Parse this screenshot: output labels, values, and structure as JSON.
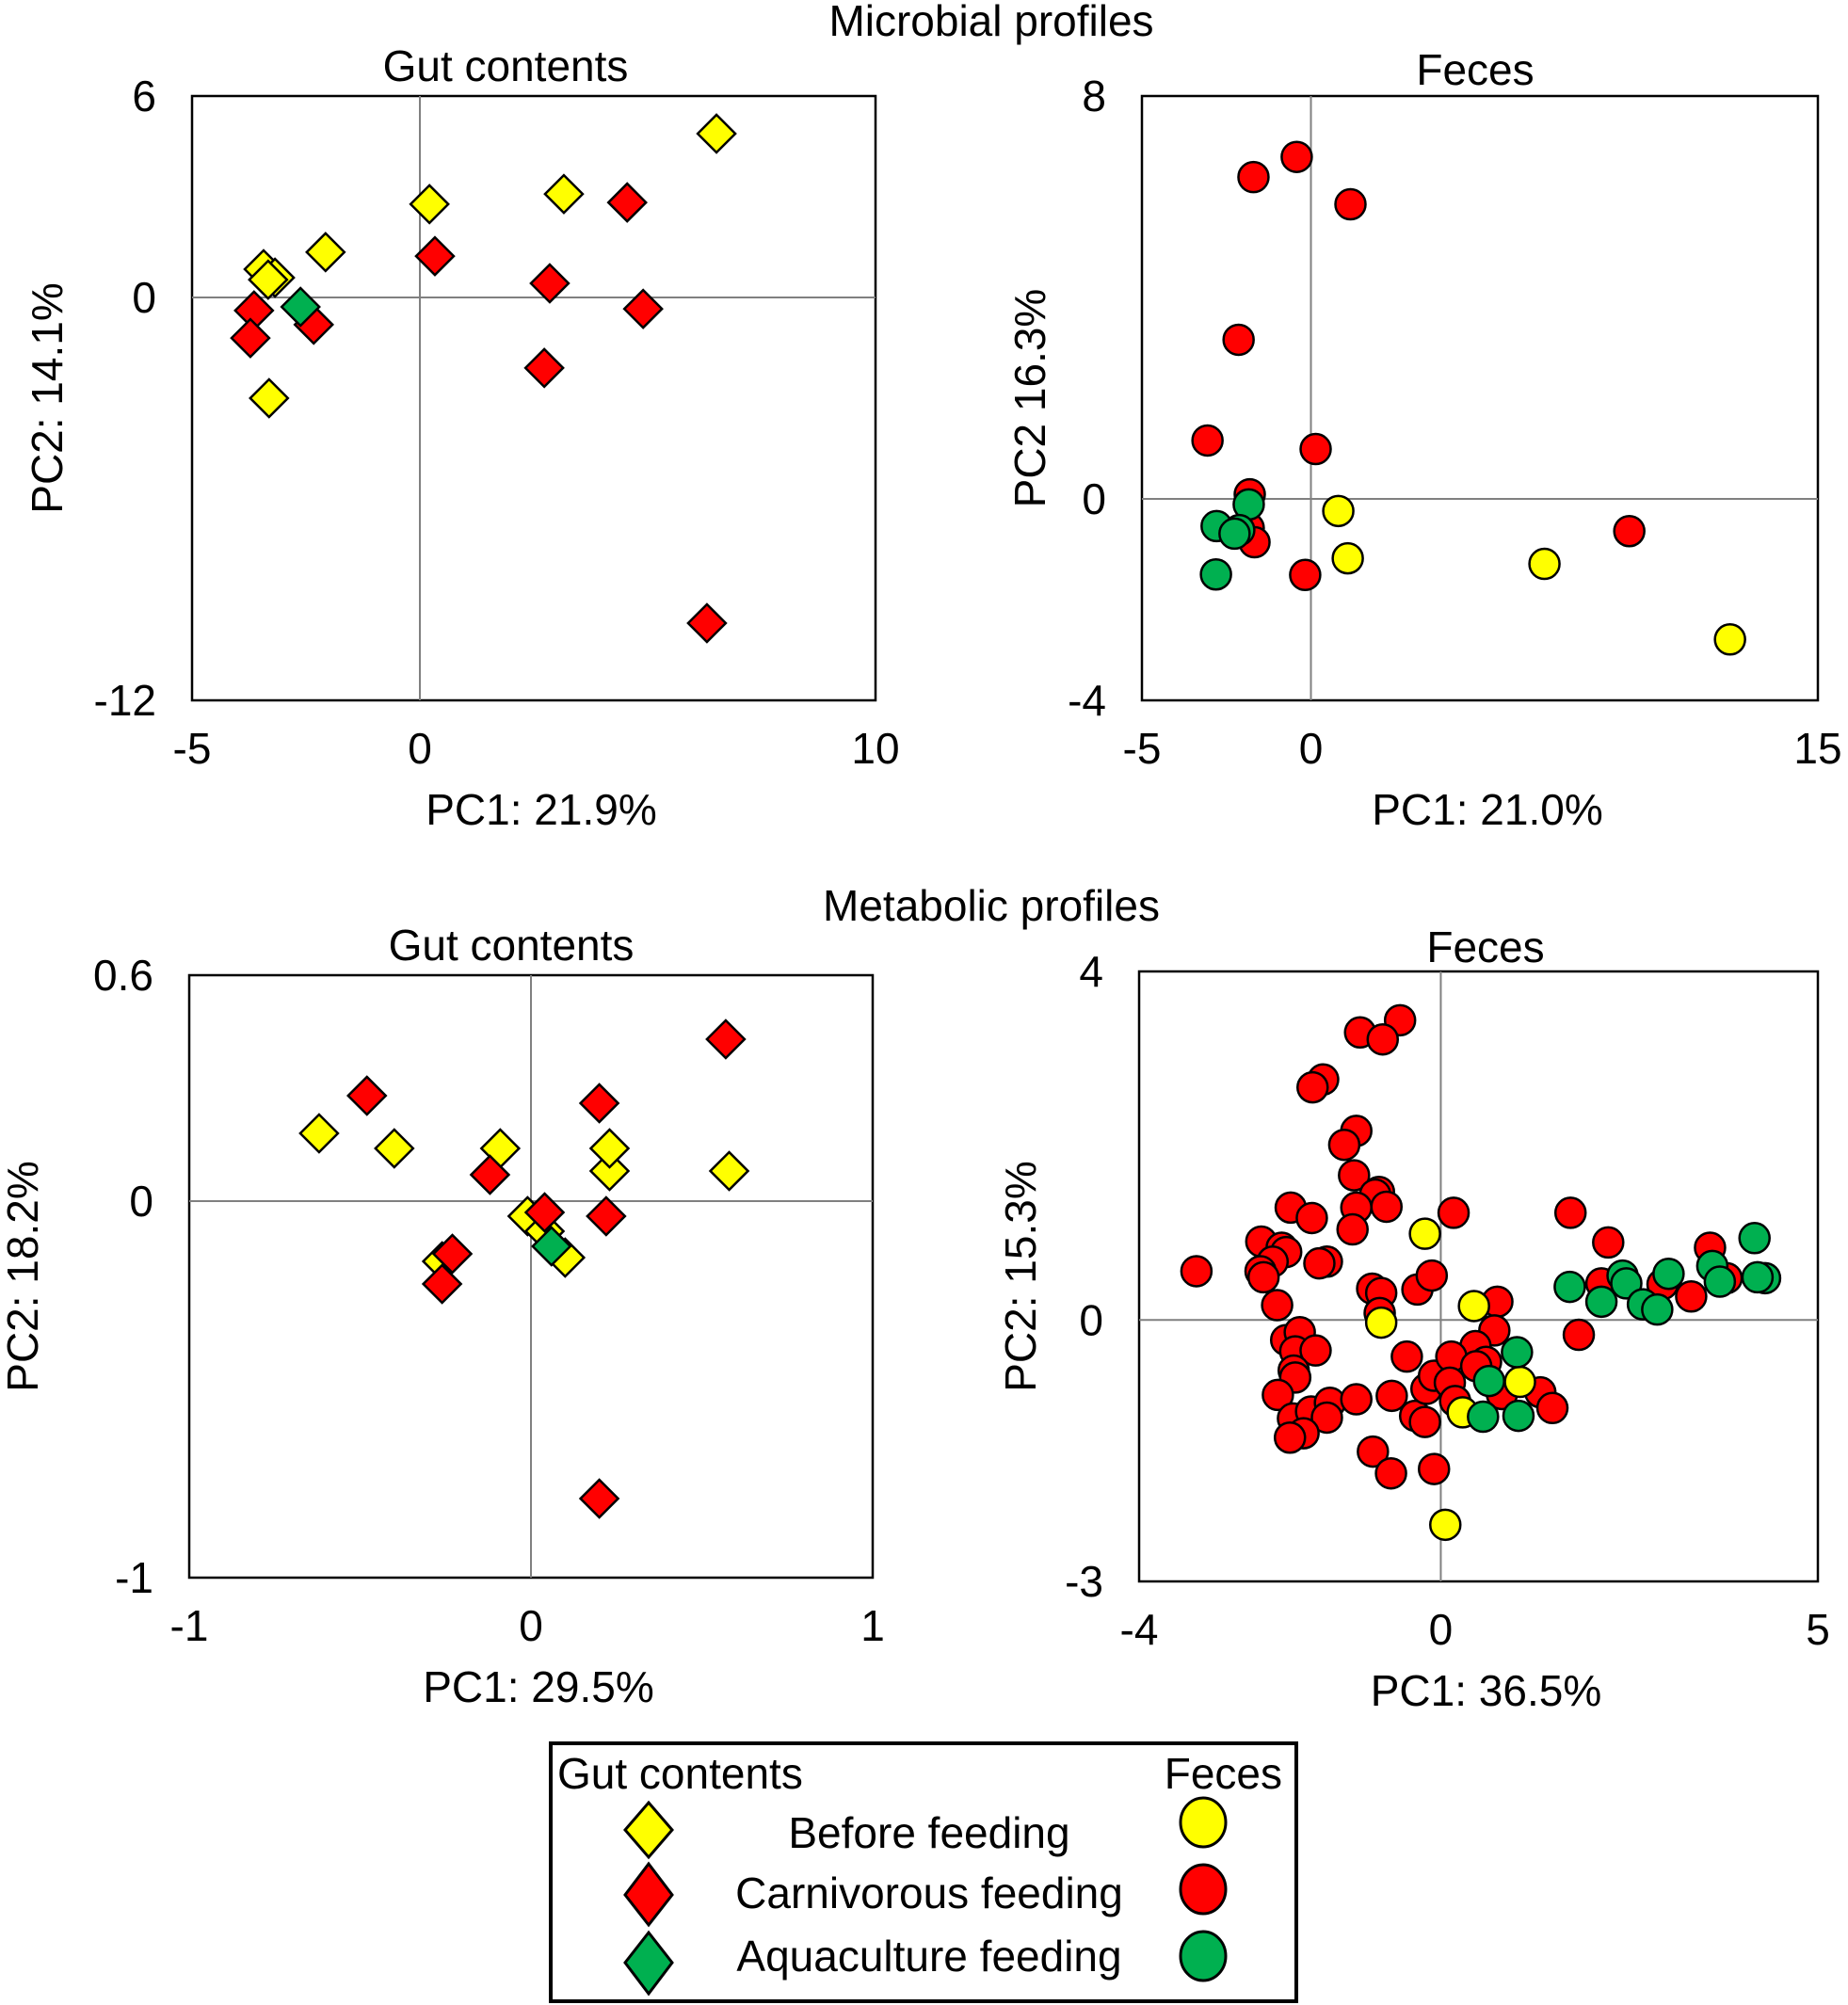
{
  "chart_data": {
    "type": "scatter",
    "section_titles": [
      "Microbial profiles",
      "Metabolic profiles"
    ],
    "colors": {
      "before": "#ffff00",
      "carnivorous": "#ff0000",
      "aquaculture": "#00b050",
      "outline": "#000000",
      "zero_line": "#808080"
    },
    "panels": [
      {
        "id": "microbial-gut",
        "section": "Microbial profiles",
        "title": "Gut contents",
        "marker": "diamond",
        "xlabel": "PC1: 21.9%",
        "ylabel": "PC2: 14.1%",
        "xlim": [
          -5,
          10
        ],
        "ylim": [
          -12,
          6
        ],
        "xticks": [
          "-5",
          "0",
          "10"
        ],
        "xtick_values": [
          -5,
          0,
          10
        ],
        "yticks": [
          "6",
          "0",
          "-12"
        ],
        "ytick_values": [
          6,
          0,
          -12
        ],
        "series": [
          {
            "name": "Before feeding",
            "group": "before",
            "points": [
              [
                -3.43,
                0.84
              ],
              [
                -3.18,
                0.59
              ],
              [
                -3.33,
                0.53
              ],
              [
                -2.07,
                1.35
              ],
              [
                -3.31,
                -3.0
              ],
              [
                0.21,
                2.78
              ],
              [
                3.16,
                3.08
              ],
              [
                6.51,
                4.88
              ]
            ]
          },
          {
            "name": "Carnivorous feeding",
            "group": "carnivorous",
            "points": [
              [
                -3.64,
                -0.39
              ],
              [
                -3.72,
                -1.21
              ],
              [
                -2.33,
                -0.81
              ],
              [
                0.33,
                1.23
              ],
              [
                2.85,
                0.42
              ],
              [
                4.55,
                2.83
              ],
              [
                4.9,
                -0.34
              ],
              [
                2.73,
                -2.1
              ],
              [
                6.3,
                -9.7
              ]
            ]
          },
          {
            "name": "Aquaculture feeding",
            "group": "aquaculture",
            "points": [
              [
                -2.62,
                -0.28
              ]
            ]
          }
        ]
      },
      {
        "id": "microbial-feces",
        "section": "Microbial profiles",
        "title": "Feces",
        "marker": "circle",
        "xlabel": "PC1: 21.0%",
        "ylabel": "PC2 16.3%",
        "xlim": [
          -5,
          15
        ],
        "ylim": [
          -4,
          8
        ],
        "xticks": [
          "-5",
          "0",
          "15"
        ],
        "xtick_values": [
          -5,
          0,
          15
        ],
        "yticks": [
          "8",
          "0",
          "-4"
        ],
        "ytick_values": [
          8,
          0,
          -4
        ],
        "series": [
          {
            "name": "Before feeding",
            "group": "before",
            "points": [
              [
                0.81,
                -0.24
              ],
              [
                1.09,
                -1.18
              ],
              [
                6.91,
                -1.29
              ],
              [
                12.4,
                -2.79
              ]
            ]
          },
          {
            "name": "Carnivorous feeding",
            "group": "carnivorous",
            "points": [
              [
                -0.42,
                6.79
              ],
              [
                -1.7,
                6.39
              ],
              [
                1.17,
                5.85
              ],
              [
                -2.14,
                3.16
              ],
              [
                -3.06,
                1.16
              ],
              [
                0.14,
                0.99
              ],
              [
                -1.81,
                0.09
              ],
              [
                -1.84,
                -0.58
              ],
              [
                -1.67,
                -0.86
              ],
              [
                -0.17,
                -1.51
              ],
              [
                9.42,
                -0.64
              ]
            ]
          },
          {
            "name": "Aquaculture feeding",
            "group": "aquaculture",
            "points": [
              [
                -1.84,
                -0.11
              ],
              [
                -2.79,
                -0.54
              ],
              [
                -2.12,
                -0.62
              ],
              [
                -2.26,
                -0.69
              ],
              [
                -2.81,
                -1.5
              ]
            ]
          }
        ]
      },
      {
        "id": "metabolic-gut",
        "section": "Metabolic profiles",
        "title": "Gut contents",
        "marker": "diamond",
        "xlabel": "PC1: 29.5%",
        "ylabel": "PC2: 18.2%",
        "xlim": [
          -1,
          1
        ],
        "ylim": [
          -1,
          0.6
        ],
        "xticks": [
          "-1",
          "0",
          "1"
        ],
        "xtick_values": [
          -1,
          0,
          1
        ],
        "yticks": [
          "0.6",
          "0",
          "-1"
        ],
        "ytick_values": [
          0.6,
          0,
          -1
        ],
        "series": [
          {
            "name": "Before feeding",
            "group": "before",
            "points": [
              [
                -0.62,
                0.18
              ],
              [
                -0.4,
                0.14
              ],
              [
                -0.09,
                0.14
              ],
              [
                0.23,
                0.08
              ],
              [
                0.23,
                0.14
              ],
              [
                0.58,
                0.08
              ],
              [
                -0.01,
                -0.04
              ],
              [
                0.04,
                -0.08
              ],
              [
                0.1,
                -0.15
              ],
              [
                -0.26,
                -0.16
              ]
            ]
          },
          {
            "name": "Carnivorous feeding",
            "group": "carnivorous",
            "points": [
              [
                -0.48,
                0.28
              ],
              [
                -0.12,
                0.07
              ],
              [
                0.2,
                0.26
              ],
              [
                0.57,
                0.43
              ],
              [
                0.22,
                -0.04
              ],
              [
                0.04,
                -0.03
              ],
              [
                -0.23,
                -0.14
              ],
              [
                -0.26,
                -0.22
              ],
              [
                0.2,
                -0.79
              ]
            ]
          },
          {
            "name": "Aquaculture feeding",
            "group": "aquaculture",
            "points": [
              [
                0.06,
                -0.12
              ]
            ]
          }
        ]
      },
      {
        "id": "metabolic-feces",
        "section": "Metabolic profiles",
        "title": "Feces",
        "marker": "circle",
        "xlabel": "PC1: 36.5%",
        "ylabel": "PC2: 15.3%",
        "xlim": [
          -4,
          5
        ],
        "ylim": [
          -3,
          4
        ],
        "xticks": [
          "-4",
          "0",
          "5"
        ],
        "xtick_values": [
          -4,
          0,
          5
        ],
        "yticks": [
          "4",
          "0",
          "-3"
        ],
        "ytick_values": [
          4,
          0,
          -3
        ],
        "series": [
          {
            "name": "Carnivorous feeding",
            "group": "carnivorous",
            "points": [
              [
                -0.54,
                3.44
              ],
              [
                -1.07,
                3.3
              ],
              [
                -0.77,
                3.22
              ],
              [
                -1.56,
                2.76
              ],
              [
                -1.7,
                2.67
              ],
              [
                -1.12,
                2.17
              ],
              [
                -1.28,
                2.01
              ],
              [
                -1.15,
                1.66
              ],
              [
                -0.82,
                1.47
              ],
              [
                -0.87,
                1.44
              ],
              [
                -0.72,
                1.3
              ],
              [
                -1.12,
                1.29
              ],
              [
                -1.99,
                1.29
              ],
              [
                -1.71,
                1.17
              ],
              [
                -1.17,
                1.04
              ],
              [
                -2.38,
                0.9
              ],
              [
                -2.11,
                0.83
              ],
              [
                -2.05,
                0.78
              ],
              [
                -2.23,
                0.67
              ],
              [
                -3.24,
                0.56
              ],
              [
                -2.39,
                0.56
              ],
              [
                -2.35,
                0.49
              ],
              [
                -1.51,
                0.67
              ],
              [
                -1.61,
                0.65
              ],
              [
                -2.17,
                0.17
              ],
              [
                -0.91,
                0.36
              ],
              [
                -0.79,
                0.31
              ],
              [
                -0.81,
                0.08
              ],
              [
                -0.31,
                0.35
              ],
              [
                -0.12,
                0.51
              ],
              [
                -2.05,
                -0.23
              ],
              [
                -1.87,
                -0.14
              ],
              [
                -1.93,
                -0.36
              ],
              [
                -1.66,
                -0.35
              ],
              [
                -1.95,
                -0.58
              ],
              [
                -1.93,
                -0.66
              ],
              [
                -2.16,
                -0.86
              ],
              [
                -1.96,
                -1.13
              ],
              [
                -1.72,
                -1.05
              ],
              [
                -1.47,
                -0.95
              ],
              [
                -1.51,
                -1.12
              ],
              [
                -1.82,
                -1.3
              ],
              [
                -2.0,
                -1.35
              ],
              [
                -1.12,
                -0.91
              ],
              [
                -0.65,
                -0.87
              ],
              [
                -0.45,
                -0.42
              ],
              [
                -0.34,
                -1.1
              ],
              [
                -0.21,
                -1.17
              ],
              [
                -0.19,
                -0.79
              ],
              [
                -0.09,
                -0.64
              ],
              [
                -0.9,
                -1.51
              ],
              [
                -0.66,
                -1.76
              ],
              [
                -0.09,
                -1.71
              ],
              [
                0.17,
                1.23
              ],
              [
                1.72,
                1.23
              ],
              [
                2.22,
                0.89
              ],
              [
                2.13,
                0.42
              ],
              [
                0.75,
                0.21
              ],
              [
                1.83,
                -0.17
              ],
              [
                0.71,
                -0.12
              ],
              [
                0.46,
                -0.3
              ],
              [
                0.14,
                -0.42
              ],
              [
                0.6,
                -0.48
              ],
              [
                0.47,
                -0.53
              ],
              [
                0.12,
                -0.72
              ],
              [
                0.81,
                -0.85
              ],
              [
                1.32,
                -0.83
              ],
              [
                1.48,
                -1.01
              ],
              [
                0.19,
                -0.93
              ],
              [
                2.94,
                0.41
              ],
              [
                3.32,
                0.27
              ],
              [
                3.57,
                0.83
              ],
              [
                3.79,
                0.48
              ]
            ]
          },
          {
            "name": "Before feeding",
            "group": "before",
            "points": [
              [
                -0.21,
                0.99
              ],
              [
                -0.79,
                -0.03
              ],
              [
                0.44,
                0.16
              ],
              [
                1.05,
                -0.71
              ],
              [
                0.29,
                -1.06
              ],
              [
                0.06,
                -2.35
              ]
            ]
          },
          {
            "name": "Aquaculture feeding",
            "group": "aquaculture",
            "points": [
              [
                1.71,
                0.38
              ],
              [
                2.41,
                0.51
              ],
              [
                2.13,
                0.21
              ],
              [
                1.01,
                -0.37
              ],
              [
                0.64,
                -0.7
              ],
              [
                0.56,
                -1.11
              ],
              [
                1.03,
                -1.1
              ],
              [
                2.46,
                0.42
              ],
              [
                3.02,
                0.53
              ],
              [
                2.68,
                0.18
              ],
              [
                2.87,
                0.12
              ],
              [
                3.6,
                0.62
              ],
              [
                3.7,
                0.44
              ],
              [
                4.16,
                0.94
              ],
              [
                4.3,
                0.48
              ],
              [
                4.2,
                0.49
              ]
            ]
          }
        ]
      }
    ],
    "legend": {
      "placement": "bottom-center",
      "left_header": "Gut contents",
      "right_header": "Feces",
      "entries": [
        {
          "label": "Before feeding",
          "group": "before"
        },
        {
          "label": "Carnivorous feeding",
          "group": "carnivorous"
        },
        {
          "label": "Aquaculture feeding",
          "group": "aquaculture"
        }
      ]
    }
  }
}
